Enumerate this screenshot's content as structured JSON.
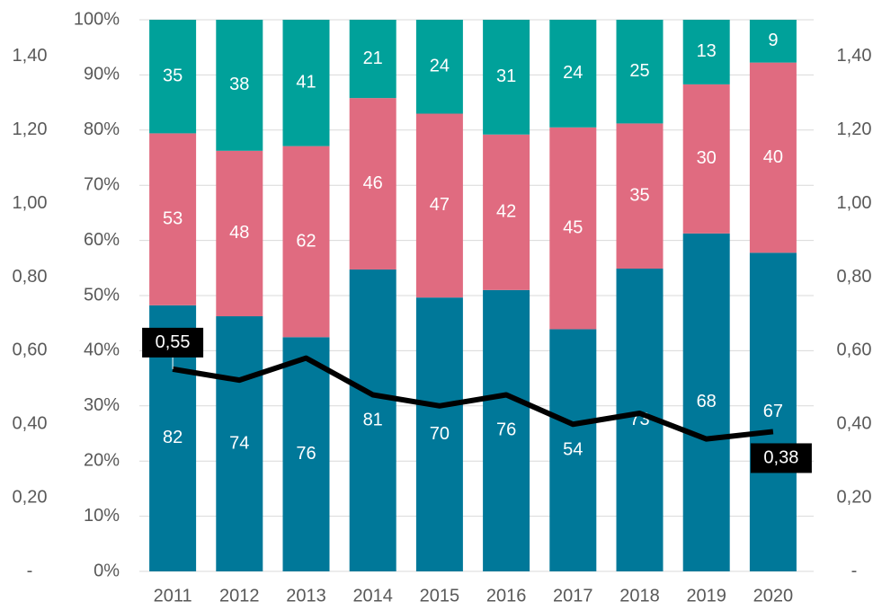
{
  "chart_data": {
    "type": "bar",
    "stacking": "percent",
    "categories": [
      "2011",
      "2012",
      "2013",
      "2014",
      "2015",
      "2016",
      "2017",
      "2018",
      "2019",
      "2020"
    ],
    "series": [
      {
        "color": "#007899",
        "values": [
          82,
          74,
          76,
          81,
          70,
          76,
          54,
          73,
          68,
          67
        ]
      },
      {
        "color": "#e06b80",
        "values": [
          53,
          48,
          62,
          46,
          47,
          42,
          45,
          35,
          30,
          40
        ]
      },
      {
        "color": "#00a19a",
        "values": [
          35,
          38,
          41,
          21,
          24,
          31,
          24,
          25,
          13,
          9
        ]
      },
      {
        "type": "line",
        "axis": "y2",
        "color": "#000000",
        "values": [
          0.55,
          0.52,
          0.58,
          0.48,
          0.45,
          0.48,
          0.4,
          0.43,
          0.36,
          0.38
        ],
        "value_labels": [
          "0,55",
          null,
          null,
          null,
          null,
          null,
          null,
          null,
          null,
          "0,38"
        ]
      }
    ],
    "ylim": [
      0,
      100
    ],
    "yticks": [
      {
        "value": 0,
        "label": "0%"
      },
      {
        "value": 10,
        "label": "10%"
      },
      {
        "value": 20,
        "label": "20%"
      },
      {
        "value": 30,
        "label": "30%"
      },
      {
        "value": 40,
        "label": "40%"
      },
      {
        "value": 50,
        "label": "50%"
      },
      {
        "value": 60,
        "label": "60%"
      },
      {
        "value": 70,
        "label": "70%"
      },
      {
        "value": 80,
        "label": "80%"
      },
      {
        "value": 90,
        "label": "90%"
      },
      {
        "value": 100,
        "label": "100%"
      }
    ],
    "y2lim": [
      0,
      1.5
    ],
    "y2ticks": [
      {
        "value": 0,
        "label": "-"
      },
      {
        "value": 0.2,
        "label": "0,20"
      },
      {
        "value": 0.4,
        "label": "0,40"
      },
      {
        "value": 0.6,
        "label": "0,60"
      },
      {
        "value": 0.8,
        "label": "0,80"
      },
      {
        "value": 1.0,
        "label": "1,00"
      },
      {
        "value": 1.2,
        "label": "1,20"
      },
      {
        "value": 1.4,
        "label": "1,40"
      }
    ],
    "grid": true
  }
}
